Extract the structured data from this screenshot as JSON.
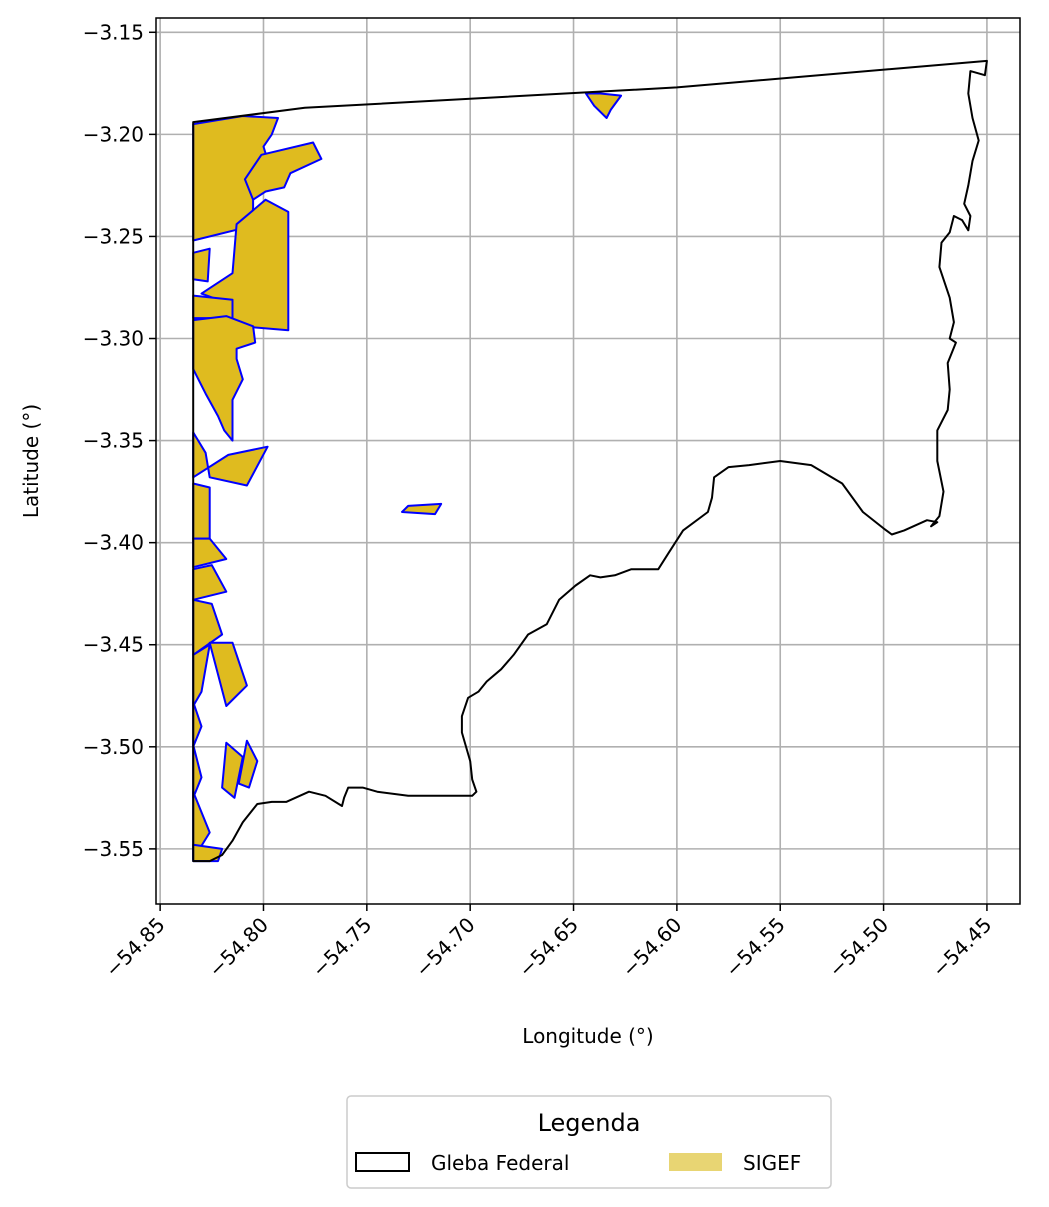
{
  "chart_data": {
    "type": "map",
    "xlabel": "Longitude (°)",
    "ylabel": "Latitude (°)",
    "xlim": [
      -54.852,
      -54.434
    ],
    "ylim": [
      -3.577,
      -3.143
    ],
    "xticks": [
      -54.85,
      -54.8,
      -54.75,
      -54.7,
      -54.65,
      -54.6,
      -54.55,
      -54.5,
      -54.45
    ],
    "xtick_labels": [
      "−54.85",
      "−54.80",
      "−54.75",
      "−54.70",
      "−54.65",
      "−54.60",
      "−54.55",
      "−54.50",
      "−54.45"
    ],
    "yticks": [
      -3.15,
      -3.2,
      -3.25,
      -3.3,
      -3.35,
      -3.4,
      -3.45,
      -3.5,
      -3.55
    ],
    "ytick_labels": [
      "−3.15",
      "−3.20",
      "−3.25",
      "−3.30",
      "−3.35",
      "−3.40",
      "−3.45",
      "−3.50",
      "−3.55"
    ],
    "grid": true,
    "colors": {
      "gleba_edge": "#000000",
      "sigef_fill": "#dfbb1f",
      "sigef_edge": "#0000ff",
      "legend_sigef": "#e8d573",
      "grid": "#b0b0b0"
    },
    "legend": {
      "title": "Legenda",
      "placement": "bottom-center",
      "items": [
        {
          "label": "Gleba Federal",
          "style": "outline"
        },
        {
          "label": "SIGEF",
          "style": "filled"
        }
      ]
    },
    "gleba_boundary": [
      [
        -54.834,
        -3.194
      ],
      [
        -54.78,
        -3.187
      ],
      [
        -54.6,
        -3.177
      ],
      [
        -54.45,
        -3.164
      ],
      [
        -54.451,
        -3.171
      ],
      [
        -54.458,
        -3.169
      ],
      [
        -54.459,
        -3.18
      ],
      [
        -54.457,
        -3.192
      ],
      [
        -54.454,
        -3.203
      ],
      [
        -54.457,
        -3.213
      ],
      [
        -54.459,
        -3.225
      ],
      [
        -54.461,
        -3.234
      ],
      [
        -54.458,
        -3.24
      ],
      [
        -54.459,
        -3.247
      ],
      [
        -54.462,
        -3.242
      ],
      [
        -54.466,
        -3.24
      ],
      [
        -54.468,
        -3.248
      ],
      [
        -54.472,
        -3.253
      ],
      [
        -54.473,
        -3.265
      ],
      [
        -54.468,
        -3.28
      ],
      [
        -54.466,
        -3.292
      ],
      [
        -54.468,
        -3.3
      ],
      [
        -54.465,
        -3.302
      ],
      [
        -54.469,
        -3.312
      ],
      [
        -54.468,
        -3.325
      ],
      [
        -54.469,
        -3.335
      ],
      [
        -54.474,
        -3.345
      ],
      [
        -54.474,
        -3.36
      ],
      [
        -54.471,
        -3.375
      ],
      [
        -54.473,
        -3.387
      ],
      [
        -54.477,
        -3.392
      ],
      [
        -54.474,
        -3.39
      ],
      [
        -54.479,
        -3.389
      ],
      [
        -54.49,
        -3.394
      ],
      [
        -54.496,
        -3.396
      ],
      [
        -54.5,
        -3.393
      ],
      [
        -54.51,
        -3.385
      ],
      [
        -54.52,
        -3.371
      ],
      [
        -54.535,
        -3.362
      ],
      [
        -54.55,
        -3.36
      ],
      [
        -54.565,
        -3.362
      ],
      [
        -54.575,
        -3.363
      ],
      [
        -54.582,
        -3.368
      ],
      [
        -54.583,
        -3.378
      ],
      [
        -54.585,
        -3.385
      ],
      [
        -54.597,
        -3.394
      ],
      [
        -54.604,
        -3.405
      ],
      [
        -54.609,
        -3.413
      ],
      [
        -54.622,
        -3.413
      ],
      [
        -54.63,
        -3.416
      ],
      [
        -54.637,
        -3.417
      ],
      [
        -54.642,
        -3.416
      ],
      [
        -54.649,
        -3.421
      ],
      [
        -54.657,
        -3.428
      ],
      [
        -54.663,
        -3.44
      ],
      [
        -54.672,
        -3.445
      ],
      [
        -54.679,
        -3.455
      ],
      [
        -54.685,
        -3.462
      ],
      [
        -54.692,
        -3.468
      ],
      [
        -54.696,
        -3.473
      ],
      [
        -54.701,
        -3.476
      ],
      [
        -54.704,
        -3.485
      ],
      [
        -54.704,
        -3.493
      ],
      [
        -54.7,
        -3.507
      ],
      [
        -54.699,
        -3.516
      ],
      [
        -54.697,
        -3.522
      ],
      [
        -54.699,
        -3.524
      ],
      [
        -54.71,
        -3.524
      ],
      [
        -54.73,
        -3.524
      ],
      [
        -54.745,
        -3.522
      ],
      [
        -54.752,
        -3.52
      ],
      [
        -54.759,
        -3.52
      ],
      [
        -54.761,
        -3.525
      ],
      [
        -54.762,
        -3.529
      ],
      [
        -54.77,
        -3.524
      ],
      [
        -54.778,
        -3.522
      ],
      [
        -54.789,
        -3.527
      ],
      [
        -54.796,
        -3.527
      ],
      [
        -54.803,
        -3.528
      ],
      [
        -54.81,
        -3.537
      ],
      [
        -54.815,
        -3.546
      ],
      [
        -54.82,
        -3.553
      ],
      [
        -54.826,
        -3.556
      ],
      [
        -54.834,
        -3.556
      ],
      [
        -54.834,
        -3.194
      ]
    ],
    "sigef_parcels": [
      [
        [
          -54.834,
          -3.195
        ],
        [
          -54.81,
          -3.191
        ],
        [
          -54.793,
          -3.192
        ],
        [
          -54.796,
          -3.2
        ],
        [
          -54.8,
          -3.206
        ],
        [
          -54.797,
          -3.216
        ],
        [
          -54.805,
          -3.224
        ],
        [
          -54.805,
          -3.236
        ],
        [
          -54.806,
          -3.245
        ],
        [
          -54.834,
          -3.252
        ]
      ],
      [
        [
          -54.801,
          -3.21
        ],
        [
          -54.776,
          -3.204
        ],
        [
          -54.772,
          -3.212
        ],
        [
          -54.787,
          -3.219
        ],
        [
          -54.79,
          -3.226
        ],
        [
          -54.799,
          -3.228
        ],
        [
          -54.805,
          -3.232
        ],
        [
          -54.809,
          -3.222
        ]
      ],
      [
        [
          -54.799,
          -3.232
        ],
        [
          -54.788,
          -3.238
        ],
        [
          -54.788,
          -3.296
        ],
        [
          -54.822,
          -3.293
        ],
        [
          -54.822,
          -3.281
        ],
        [
          -54.83,
          -3.278
        ],
        [
          -54.815,
          -3.268
        ],
        [
          -54.813,
          -3.244
        ]
      ],
      [
        [
          -54.834,
          -3.258
        ],
        [
          -54.826,
          -3.256
        ],
        [
          -54.827,
          -3.272
        ],
        [
          -54.834,
          -3.271
        ]
      ],
      [
        [
          -54.834,
          -3.279
        ],
        [
          -54.815,
          -3.281
        ],
        [
          -54.815,
          -3.29
        ],
        [
          -54.834,
          -3.29
        ]
      ],
      [
        [
          -54.834,
          -3.291
        ],
        [
          -54.818,
          -3.289
        ],
        [
          -54.805,
          -3.294
        ],
        [
          -54.804,
          -3.302
        ],
        [
          -54.813,
          -3.305
        ],
        [
          -54.813,
          -3.31
        ],
        [
          -54.81,
          -3.32
        ],
        [
          -54.815,
          -3.33
        ],
        [
          -54.815,
          -3.35
        ],
        [
          -54.819,
          -3.345
        ],
        [
          -54.822,
          -3.338
        ],
        [
          -54.828,
          -3.327
        ],
        [
          -54.834,
          -3.315
        ]
      ],
      [
        [
          -54.834,
          -3.346
        ],
        [
          -54.828,
          -3.356
        ],
        [
          -54.826,
          -3.368
        ],
        [
          -54.808,
          -3.372
        ],
        [
          -54.798,
          -3.353
        ],
        [
          -54.817,
          -3.357
        ],
        [
          -54.834,
          -3.368
        ]
      ],
      [
        [
          -54.834,
          -3.371
        ],
        [
          -54.826,
          -3.373
        ],
        [
          -54.826,
          -3.398
        ],
        [
          -54.834,
          -3.398
        ]
      ],
      [
        [
          -54.834,
          -3.398
        ],
        [
          -54.826,
          -3.398
        ],
        [
          -54.818,
          -3.408
        ],
        [
          -54.834,
          -3.412
        ]
      ],
      [
        [
          -54.834,
          -3.413
        ],
        [
          -54.825,
          -3.411
        ],
        [
          -54.818,
          -3.424
        ],
        [
          -54.834,
          -3.428
        ]
      ],
      [
        [
          -54.834,
          -3.428
        ],
        [
          -54.825,
          -3.43
        ],
        [
          -54.82,
          -3.445
        ],
        [
          -54.834,
          -3.455
        ]
      ],
      [
        [
          -54.834,
          -3.455
        ],
        [
          -54.826,
          -3.45
        ],
        [
          -54.83,
          -3.473
        ],
        [
          -54.834,
          -3.48
        ]
      ],
      [
        [
          -54.826,
          -3.449
        ],
        [
          -54.815,
          -3.449
        ],
        [
          -54.808,
          -3.47
        ],
        [
          -54.818,
          -3.48
        ]
      ],
      [
        [
          -54.834,
          -3.478
        ],
        [
          -54.83,
          -3.49
        ],
        [
          -54.834,
          -3.5
        ]
      ],
      [
        [
          -54.834,
          -3.499
        ],
        [
          -54.83,
          -3.515
        ],
        [
          -54.834,
          -3.525
        ]
      ],
      [
        [
          -54.818,
          -3.498
        ],
        [
          -54.81,
          -3.505
        ],
        [
          -54.814,
          -3.525
        ],
        [
          -54.82,
          -3.52
        ]
      ],
      [
        [
          -54.808,
          -3.497
        ],
        [
          -54.803,
          -3.507
        ],
        [
          -54.807,
          -3.52
        ],
        [
          -54.812,
          -3.518
        ]
      ],
      [
        [
          -54.834,
          -3.522
        ],
        [
          -54.826,
          -3.542
        ],
        [
          -54.834,
          -3.555
        ]
      ],
      [
        [
          -54.834,
          -3.548
        ],
        [
          -54.82,
          -3.55
        ],
        [
          -54.822,
          -3.556
        ],
        [
          -54.834,
          -3.556
        ]
      ],
      [
        [
          -54.637,
          -3.18
        ],
        [
          -54.627,
          -3.181
        ],
        [
          -54.632,
          -3.188
        ],
        [
          -54.634,
          -3.192
        ],
        [
          -54.64,
          -3.186
        ],
        [
          -54.644,
          -3.18
        ]
      ],
      [
        [
          -54.73,
          -3.382
        ],
        [
          -54.714,
          -3.381
        ],
        [
          -54.717,
          -3.386
        ],
        [
          -54.733,
          -3.385
        ]
      ]
    ]
  }
}
